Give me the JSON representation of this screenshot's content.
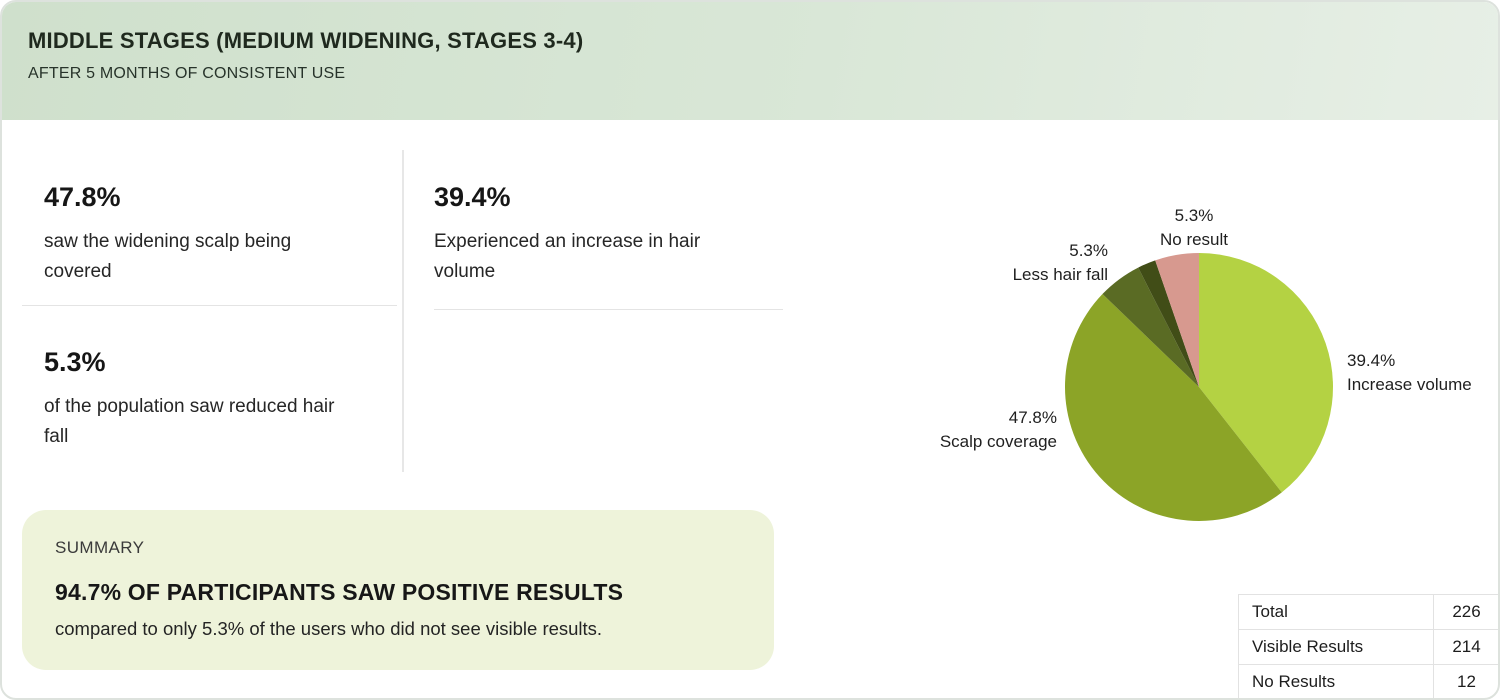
{
  "header": {
    "title": "MIDDLE STAGES (MEDIUM WIDENING, STAGES 3-4)",
    "subtitle": "AFTER 5 MONTHS OF CONSISTENT USE"
  },
  "stats": [
    {
      "value": "47.8%",
      "description": "saw the widening scalp being covered"
    },
    {
      "value": "39.4%",
      "description": "Experienced an increase in hair volume"
    },
    {
      "value": "5.3%",
      "description": "of the population saw reduced hair fall"
    }
  ],
  "summary": {
    "label": "SUMMARY",
    "headline": "94.7% OF PARTICIPANTS SAW POSITIVE RESULTS",
    "body": "compared to only 5.3% of the users who did not see visible results."
  },
  "chart_data": [
    {
      "type": "pie",
      "title": "",
      "start_angle_deg": 0,
      "direction": "clockwise",
      "legend_position": "labels-around-pie",
      "segments": [
        {
          "label": "Increase volume",
          "pct_label": "39.4%",
          "value": 39.4,
          "color": "#b4d243"
        },
        {
          "label": "Scalp coverage",
          "pct_label": "47.8%",
          "value": 47.8,
          "color": "#8ca427"
        },
        {
          "label": "Less hair fall",
          "pct_label": "5.3%",
          "value": 5.3,
          "color": "#5a6b24"
        },
        {
          "label": "",
          "pct_label": "",
          "value": 2.2,
          "color": "#414d17"
        },
        {
          "label": "No result",
          "pct_label": "5.3%",
          "value": 5.3,
          "color": "#d7998f"
        }
      ]
    },
    {
      "type": "table",
      "rows": [
        {
          "label": "Total",
          "value": "226"
        },
        {
          "label": "Visible Results",
          "value": "214"
        },
        {
          "label": "No Results",
          "value": "12"
        }
      ]
    }
  ],
  "colors": {
    "header_gradient_start": "#cfe0cc",
    "header_gradient_end": "#e7efe6",
    "summary_bg": "#eef3da",
    "card_border": "#dde2dd",
    "divider": "#e4e4e4"
  }
}
